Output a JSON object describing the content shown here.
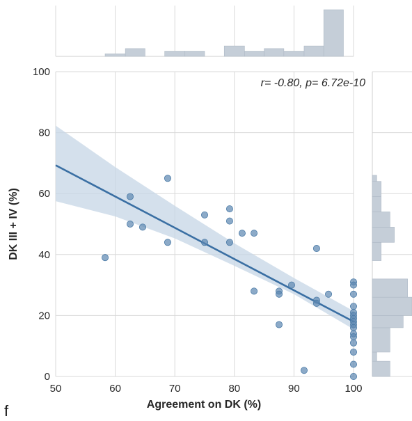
{
  "chart_data": {
    "type": "scatter",
    "xlabel": "Agreement on DK (%)",
    "ylabel": "DK III + IV (%)",
    "xlim": [
      50,
      100
    ],
    "ylim": [
      0,
      100
    ],
    "xticks": [
      "50",
      "60",
      "70",
      "80",
      "90",
      "100"
    ],
    "yticks": [
      "0",
      "20",
      "40",
      "60",
      "80",
      "100"
    ],
    "annotation": "r= -0.80, p= 6.72e-10",
    "panel_label": "f",
    "grid": true,
    "colors": {
      "points": "#5b86b0",
      "line": "#3a6fa3",
      "ci": "#c6d6e6",
      "hist": "#c5ced8"
    },
    "points": [
      {
        "x": 58.3,
        "y": 39
      },
      {
        "x": 62.5,
        "y": 59
      },
      {
        "x": 62.5,
        "y": 50
      },
      {
        "x": 64.6,
        "y": 49
      },
      {
        "x": 68.8,
        "y": 65
      },
      {
        "x": 68.8,
        "y": 44
      },
      {
        "x": 75.0,
        "y": 53
      },
      {
        "x": 75.0,
        "y": 44
      },
      {
        "x": 79.2,
        "y": 55
      },
      {
        "x": 79.2,
        "y": 51
      },
      {
        "x": 79.2,
        "y": 44
      },
      {
        "x": 81.3,
        "y": 47
      },
      {
        "x": 83.3,
        "y": 47
      },
      {
        "x": 83.3,
        "y": 28
      },
      {
        "x": 87.5,
        "y": 28
      },
      {
        "x": 87.5,
        "y": 27
      },
      {
        "x": 87.5,
        "y": 17
      },
      {
        "x": 89.6,
        "y": 30
      },
      {
        "x": 91.7,
        "y": 2
      },
      {
        "x": 93.8,
        "y": 42
      },
      {
        "x": 93.8,
        "y": 25
      },
      {
        "x": 93.8,
        "y": 24
      },
      {
        "x": 95.8,
        "y": 27
      },
      {
        "x": 100,
        "y": 31
      },
      {
        "x": 100,
        "y": 30
      },
      {
        "x": 100,
        "y": 27
      },
      {
        "x": 100,
        "y": 23
      },
      {
        "x": 100,
        "y": 21
      },
      {
        "x": 100,
        "y": 20
      },
      {
        "x": 100,
        "y": 19
      },
      {
        "x": 100,
        "y": 18
      },
      {
        "x": 100,
        "y": 17
      },
      {
        "x": 100,
        "y": 16
      },
      {
        "x": 100,
        "y": 14
      },
      {
        "x": 100,
        "y": 13
      },
      {
        "x": 100,
        "y": 11
      },
      {
        "x": 100,
        "y": 8
      },
      {
        "x": 100,
        "y": 4
      },
      {
        "x": 100,
        "y": 0
      }
    ],
    "regression": {
      "x0": 50,
      "y0": 69.3,
      "x1": 100,
      "y1": 18.0
    },
    "confidence_band": {
      "x": [
        50,
        60,
        70,
        80,
        90,
        100
      ],
      "lower": [
        57.5,
        52.5,
        45.3,
        36.3,
        27.0,
        15.5
      ],
      "upper": [
        82.3,
        68.7,
        56.0,
        43.7,
        32.3,
        21.5
      ]
    },
    "marginal_x_hist": {
      "bins": [
        {
          "x0": 58.3,
          "x1": 61.7,
          "count": 1
        },
        {
          "x0": 61.7,
          "x1": 65.0,
          "count": 3
        },
        {
          "x0": 65.0,
          "x1": 68.3,
          "count": 0
        },
        {
          "x0": 68.3,
          "x1": 71.7,
          "count": 2
        },
        {
          "x0": 71.7,
          "x1": 75.0,
          "count": 2
        },
        {
          "x0": 75.0,
          "x1": 78.3,
          "count": 0
        },
        {
          "x0": 78.3,
          "x1": 81.7,
          "count": 4
        },
        {
          "x0": 81.7,
          "x1": 85.0,
          "count": 2
        },
        {
          "x0": 85.0,
          "x1": 88.3,
          "count": 3
        },
        {
          "x0": 88.3,
          "x1": 91.7,
          "count": 2
        },
        {
          "x0": 91.7,
          "x1": 95.0,
          "count": 4
        },
        {
          "x0": 95.0,
          "x1": 98.3,
          "count": 18
        }
      ]
    },
    "marginal_y_hist": {
      "bins": [
        {
          "y0": 0,
          "y1": 5,
          "count": 4
        },
        {
          "y0": 5,
          "y1": 8,
          "count": 1
        },
        {
          "y0": 8,
          "y1": 16,
          "count": 4
        },
        {
          "y0": 16,
          "y1": 20,
          "count": 7
        },
        {
          "y0": 20,
          "y1": 26,
          "count": 9
        },
        {
          "y0": 26,
          "y1": 32,
          "count": 8
        },
        {
          "y0": 32,
          "y1": 38,
          "count": 0
        },
        {
          "y0": 38,
          "y1": 44,
          "count": 2
        },
        {
          "y0": 44,
          "y1": 49,
          "count": 5
        },
        {
          "y0": 49,
          "y1": 54,
          "count": 4
        },
        {
          "y0": 54,
          "y1": 59,
          "count": 2
        },
        {
          "y0": 59,
          "y1": 64,
          "count": 2
        },
        {
          "y0": 64,
          "y1": 66,
          "count": 1
        }
      ]
    }
  }
}
